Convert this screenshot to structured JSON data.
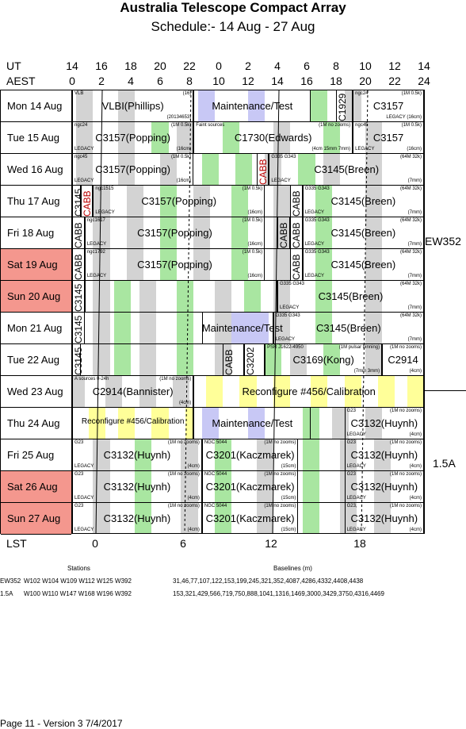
{
  "title": "Australia Telescope Compact Array",
  "subtitle": "Schedule:- 14 Aug - 27 Aug",
  "header": {
    "ut_label": "UT",
    "aest_label": "AEST",
    "lst_label": "LST",
    "ut_ticks": [
      "14",
      "16",
      "18",
      "20",
      "22",
      "0",
      "2",
      "4",
      "6",
      "8",
      "10",
      "12",
      "14"
    ],
    "aest_ticks": [
      "0",
      "2",
      "4",
      "6",
      "8",
      "10",
      "12",
      "14",
      "16",
      "18",
      "20",
      "22",
      "24"
    ],
    "lst_ticks": [
      "0",
      "6",
      "12",
      "18"
    ]
  },
  "days": [
    {
      "label": "Mon  14 Aug",
      "weekend": false
    },
    {
      "label": "Tue   15 Aug",
      "weekend": false
    },
    {
      "label": "Wed  16 Aug",
      "weekend": false
    },
    {
      "label": "Thu   17 Aug",
      "weekend": false
    },
    {
      "label": "Fri    18 Aug",
      "weekend": false
    },
    {
      "label": "Sat   19 Aug",
      "weekend": true
    },
    {
      "label": "Sun  20 Aug",
      "weekend": true
    },
    {
      "label": "Mon  21 Aug",
      "weekend": false
    },
    {
      "label": "Tue   22 Aug",
      "weekend": false
    },
    {
      "label": "Wed  23 Aug",
      "weekend": false
    },
    {
      "label": "Thu   24 Aug",
      "weekend": false
    },
    {
      "label": "Fri    25 Aug",
      "weekend": false
    },
    {
      "label": "Sat   26 Aug",
      "weekend": true
    },
    {
      "label": "Sun  27 Aug",
      "weekend": true
    }
  ],
  "configs": [
    {
      "name": "EW352"
    },
    {
      "name": "1.5A"
    }
  ],
  "colors": {
    "weekend": "#f4978e",
    "green": "#a9e6a1",
    "grey": "#d3d3d3",
    "blue": "#c8c8f5",
    "yellow": "#ffff99"
  },
  "rows": [
    {
      "bands": [
        [
          "grey",
          1,
          5
        ],
        [
          "grey",
          11,
          15
        ],
        [
          "blue",
          30,
          34
        ],
        [
          "blue",
          42,
          46
        ],
        [
          "green",
          57,
          61
        ],
        [
          "grey",
          65,
          69
        ]
      ],
      "blocks": [
        {
          "s": 0,
          "e": 29,
          "big": "VLBI(Phillips)",
          "tl": "VLB",
          "tr": "(16)",
          "br": "(20134653)"
        },
        {
          "s": 29,
          "e": 57,
          "big": "Maintenance/Test"
        },
        {
          "s": 63,
          "e": 67,
          "vert": "C1929"
        },
        {
          "s": 67,
          "e": 84,
          "big": "C3157",
          "tl": "ngc24",
          "tr": "(1M 0.5k)",
          "br": "LEGACY (16cm)"
        }
      ]
    },
    {
      "bands": [
        [
          "grey",
          1,
          5
        ],
        [
          "grey",
          11,
          15
        ],
        [
          "green",
          19,
          23
        ],
        [
          "grey",
          25,
          29
        ],
        [
          "green",
          36,
          40
        ],
        [
          "grey",
          48,
          52
        ],
        [
          "green",
          60,
          64
        ],
        [
          "grey",
          70,
          74
        ]
      ],
      "blocks": [
        {
          "s": 0,
          "e": 29,
          "big": "C3157(Popping)",
          "tl": "ngc24",
          "tr": "(1M 0.5k)",
          "bl": "LEGACY",
          "br": "(16cm)"
        },
        {
          "s": 29,
          "e": 67,
          "big": "C1730(Edwards)",
          "tl": "Faint sources",
          "tr": "(1M no zooms)",
          "br": "(4cm 15mm 7mm)"
        },
        {
          "s": 67,
          "e": 84,
          "big": "C3157",
          "tl": "ngc45",
          "tr": "(1M 0.5k)",
          "bl": "LEGACY",
          "br": "(16cm)"
        }
      ]
    },
    {
      "bands": [
        [
          "grey",
          1,
          5
        ],
        [
          "grey",
          11,
          15
        ],
        [
          "grey",
          21,
          25
        ],
        [
          "green",
          31,
          35
        ],
        [
          "green",
          39,
          43
        ],
        [
          "grey",
          46,
          50
        ],
        [
          "green",
          54,
          58
        ],
        [
          "grey",
          60,
          64
        ],
        [
          "grey",
          70,
          74
        ]
      ],
      "blocks": [
        {
          "s": 0,
          "e": 29,
          "big": "C3157(Popping)",
          "tl": "ngc45",
          "tr": "(1M 0.5k)",
          "bl": "LEGACY",
          "br": "(16cm)"
        },
        {
          "s": 44,
          "e": 47,
          "vert": "CABB",
          "red": true
        },
        {
          "s": 47,
          "e": 84,
          "big": "C3145(Breen)",
          "tl": "G335 G343",
          "tr": "(64M 32k)",
          "bl": "LEGACY",
          "br": "(7mm)"
        }
      ]
    },
    {
      "bands": [
        [
          "grey",
          5,
          9
        ],
        [
          "grey",
          13,
          17
        ],
        [
          "green",
          21,
          25
        ],
        [
          "grey",
          29,
          33
        ],
        [
          "green",
          38,
          42
        ],
        [
          "grey",
          48,
          52
        ],
        [
          "green",
          58,
          62
        ],
        [
          "grey",
          70,
          74
        ]
      ],
      "blocks": [
        {
          "s": 0,
          "e": 2,
          "vert": "C3145"
        },
        {
          "s": 2,
          "e": 5,
          "vert": "CABB",
          "red": true
        },
        {
          "s": 5,
          "e": 46,
          "big": "C3157(Popping)",
          "tl": "ngc1515",
          "tr": "(1M 0.5k)",
          "bl": "LEGACY",
          "br": "(16cm)"
        },
        {
          "s": 52,
          "e": 55,
          "vert": "CABB"
        },
        {
          "s": 55,
          "e": 84,
          "big": "C3145(Breen)",
          "tl": "G335 G343",
          "tr": "(64M 32k)",
          "bl": "LEGACY",
          "br": "(7mm)"
        }
      ]
    },
    {
      "bands": [
        [
          "grey",
          5,
          9
        ],
        [
          "grey",
          13,
          17
        ],
        [
          "green",
          21,
          25
        ],
        [
          "grey",
          29,
          33
        ],
        [
          "green",
          38,
          42
        ],
        [
          "grey",
          48,
          52
        ],
        [
          "green",
          58,
          62
        ],
        [
          "grey",
          70,
          74
        ]
      ],
      "blocks": [
        {
          "s": 0,
          "e": 3,
          "vert": "CABB"
        },
        {
          "s": 3,
          "e": 46,
          "big": "C3157(Popping)",
          "tl": "ngc1617",
          "tr": "(1M 0.5k)",
          "bl": "LEGACY",
          "br": "(16cm)"
        },
        {
          "s": 49,
          "e": 52,
          "vert": "CABB"
        },
        {
          "s": 52,
          "e": 55,
          "vert": "CABB"
        },
        {
          "s": 55,
          "e": 84,
          "big": "C3145(Breen)",
          "tl": "G335 G343",
          "tr": "(64M 32k)",
          "bl": "LEGACY",
          "br": "(7mm)"
        }
      ]
    },
    {
      "bands": [
        [
          "grey",
          5,
          9
        ],
        [
          "grey",
          13,
          17
        ],
        [
          "green",
          21,
          25
        ],
        [
          "grey",
          29,
          33
        ],
        [
          "green",
          38,
          42
        ],
        [
          "grey",
          48,
          52
        ],
        [
          "green",
          58,
          62
        ],
        [
          "grey",
          70,
          74
        ]
      ],
      "blocks": [
        {
          "s": 0,
          "e": 3,
          "vert": "CABB"
        },
        {
          "s": 3,
          "e": 46,
          "big": "C3157(Popping)",
          "tl": "ngc1792",
          "tr": "(1M 0.5k)",
          "bl": "LEGACY",
          "br": "(16cm)"
        },
        {
          "s": 52,
          "e": 55,
          "vert": "CABB"
        },
        {
          "s": 55,
          "e": 84,
          "big": "C3145(Breen)",
          "tl": "G335 G343",
          "tr": "(64M 32k)",
          "bl": "LEGACY",
          "br": "(7mm)"
        }
      ]
    },
    {
      "bands": [
        [
          "grey",
          5,
          9
        ],
        [
          "green",
          10,
          14
        ],
        [
          "grey",
          16,
          20
        ],
        [
          "green",
          25,
          29
        ],
        [
          "grey",
          34,
          38
        ],
        [
          "green",
          41,
          45
        ],
        [
          "grey",
          48,
          52
        ],
        [
          "green",
          58,
          62
        ],
        [
          "grey",
          70,
          74
        ]
      ],
      "blocks": [
        {
          "s": 0,
          "e": 3,
          "vert": "C3145"
        },
        {
          "s": 3,
          "e": 49,
          "big": ""
        },
        {
          "s": 49,
          "e": 84,
          "big": "C3145(Breen)",
          "tl": "G335 G343",
          "tr": "(64M 32k)",
          "bl": "LEGACY",
          "br": "(7mm)"
        }
      ]
    },
    {
      "bands": [
        [
          "grey",
          5,
          9
        ],
        [
          "green",
          10,
          14
        ],
        [
          "grey",
          16,
          20
        ],
        [
          "green",
          25,
          29
        ],
        [
          "grey",
          34,
          38
        ],
        [
          "blue",
          38,
          47
        ],
        [
          "grey",
          48,
          52
        ],
        [
          "green",
          58,
          62
        ],
        [
          "grey",
          70,
          74
        ]
      ],
      "blocks": [
        {
          "s": 0,
          "e": 3,
          "vert": "C3145"
        },
        {
          "s": 31,
          "e": 48,
          "big": "Maintenance/Test"
        },
        {
          "s": 48,
          "e": 84,
          "big": "C3145(Breen)",
          "tl": "G335 G343",
          "tr": "(64M 32k)",
          "bl": "LEGACY",
          "br": "(7mm)"
        }
      ]
    },
    {
      "bands": [
        [
          "grey",
          5,
          9
        ],
        [
          "green",
          10,
          14
        ],
        [
          "grey",
          16,
          20
        ],
        [
          "green",
          25,
          29
        ],
        [
          "grey",
          34,
          38
        ],
        [
          "green",
          46,
          50
        ],
        [
          "grey",
          52,
          56
        ],
        [
          "green",
          60,
          64
        ],
        [
          "grey",
          70,
          74
        ]
      ],
      "blocks": [
        {
          "s": 0,
          "e": 2,
          "vert": "C3145"
        },
        {
          "s": 36,
          "e": 41,
          "vert": "CABB"
        },
        {
          "s": 41,
          "e": 46,
          "vert": "C3202"
        },
        {
          "s": 46,
          "e": 74,
          "big": "C3169(Kong)",
          "tl": "PSR J1622-4950",
          "tr": "(1M pulsar binning)",
          "br": "(7mm 3mm)"
        },
        {
          "s": 74,
          "e": 84,
          "big": "C2914",
          "tr": "(1M no zooms)",
          "br": "(4cm)"
        }
      ]
    },
    {
      "bands": [
        [
          "grey",
          0,
          3
        ],
        [
          "grey",
          8,
          12
        ],
        [
          "grey",
          16,
          20
        ],
        [
          "grey",
          24,
          28
        ],
        [
          "yellow",
          32,
          36
        ],
        [
          "yellow",
          40,
          44
        ],
        [
          "yellow",
          48,
          52
        ],
        [
          "yellow",
          57,
          61
        ],
        [
          "yellow",
          65,
          69
        ],
        [
          "yellow",
          73,
          77
        ],
        [
          "yellow",
          80,
          84
        ]
      ],
      "blocks": [
        {
          "s": 0,
          "e": 29,
          "big": "C2914(Bannister)",
          "tl": "A  sources 0-24h",
          "tr": "(1M no zooms)",
          "br": "(4cm)"
        },
        {
          "s": 29,
          "e": 84,
          "big": "Reconfigure #456/Calibration"
        }
      ]
    },
    {
      "bands": [
        [
          "yellow",
          4,
          8
        ],
        [
          "yellow",
          11,
          15
        ],
        [
          "yellow",
          19,
          23
        ],
        [
          "yellow",
          27,
          29
        ],
        [
          "blue",
          31,
          35
        ],
        [
          "blue",
          42,
          46
        ],
        [
          "green",
          55,
          59
        ],
        [
          "grey",
          62,
          66
        ],
        [
          "grey",
          70,
          74
        ]
      ],
      "blocks": [
        {
          "s": 0,
          "e": 29,
          "big": "Reconfigure #456/Calibration",
          "small": true
        },
        {
          "s": 29,
          "e": 57,
          "big": "Maintenance/Test"
        },
        {
          "s": 65,
          "e": 84,
          "big": "C3132(Huynh)",
          "tl": "G23",
          "tr": "(1M no zooms)",
          "bl": "LEGACY",
          "br": "(4cm)"
        }
      ]
    },
    {
      "bands": [
        [
          "grey",
          5,
          9
        ],
        [
          "green",
          15,
          19
        ],
        [
          "grey",
          26,
          30
        ],
        [
          "green",
          34,
          38
        ],
        [
          "grey",
          44,
          48
        ],
        [
          "green",
          55,
          59
        ],
        [
          "grey",
          64,
          68
        ],
        [
          "grey",
          72,
          76
        ]
      ],
      "blocks": [
        {
          "s": 0,
          "e": 31,
          "big": "C3132(Huynh)",
          "tl": "G23",
          "tr": "(1M no zooms)",
          "bl": "LEGACY",
          "br": "(4cm)"
        },
        {
          "s": 31,
          "e": 54,
          "big": "C3201(Kaczmarek)",
          "tl": "NGC 5044",
          "tr": "(1M no zooms)",
          "br": "(15cm)"
        },
        {
          "s": 65,
          "e": 84,
          "big": "C3132(Huynh)",
          "tl": "G23",
          "tr": "(1M no zooms)",
          "bl": "LEGACY",
          "br": "(4cm)"
        }
      ]
    },
    {
      "bands": [
        [
          "grey",
          5,
          9
        ],
        [
          "green",
          15,
          19
        ],
        [
          "grey",
          26,
          30
        ],
        [
          "green",
          34,
          38
        ],
        [
          "grey",
          44,
          48
        ],
        [
          "green",
          55,
          59
        ],
        [
          "grey",
          64,
          68
        ],
        [
          "grey",
          72,
          76
        ]
      ],
      "blocks": [
        {
          "s": 0,
          "e": 31,
          "big": "C3132(Huynh)",
          "tl": "G23",
          "tr": "(1M no zooms)",
          "bl": "LEGACY",
          "br": "(4cm)"
        },
        {
          "s": 31,
          "e": 54,
          "big": "C3201(Kaczmarek)",
          "tl": "NGC 5044",
          "tr": "(1M no zooms)",
          "br": "(15cm)"
        },
        {
          "s": 65,
          "e": 84,
          "big": "C3132(Huynh)",
          "tl": "G23",
          "tr": "(1M no zooms)",
          "bl": "LEGACY",
          "br": "(4cm)"
        }
      ]
    },
    {
      "bands": [
        [
          "grey",
          5,
          9
        ],
        [
          "green",
          15,
          19
        ],
        [
          "grey",
          26,
          30
        ],
        [
          "green",
          34,
          38
        ],
        [
          "grey",
          44,
          48
        ],
        [
          "green",
          55,
          59
        ],
        [
          "grey",
          64,
          68
        ],
        [
          "grey",
          72,
          76
        ]
      ],
      "blocks": [
        {
          "s": 0,
          "e": 31,
          "big": "C3132(Huynh)",
          "tl": "G23",
          "tr": "(1M no zooms)",
          "bl": "LEGACY",
          "br": "(4cm)"
        },
        {
          "s": 31,
          "e": 54,
          "big": "C3201(Kaczmarek)",
          "tl": "NGC 5044",
          "tr": "(1M no zooms)",
          "br": "(15cm)"
        },
        {
          "s": 65,
          "e": 84,
          "big": "C3132(Huynh)",
          "tl": "G23,",
          "tr": "(1M no zooms)",
          "bl": "LEGACY",
          "br": "(4cm)"
        }
      ]
    }
  ],
  "footer": {
    "stations_label": "Stations",
    "baselines_label": "Baselines (m)",
    "lines": [
      {
        "cfg": "EW352",
        "stations": "W102 W104 W109 W112 W125 W392",
        "baselines": "31,46,77,107,122,153,199,245,321,352,4087,4286,4332,4408,4438"
      },
      {
        "cfg": "1.5A",
        "stations": "W100 W110 W147 W168 W196 W392",
        "baselines": "153,321,429,566,719,750,888,1041,1316,1469,3000,3429,3750,4316,4469"
      }
    ],
    "page": "Page 11 - Version 3  7/4/2017"
  }
}
